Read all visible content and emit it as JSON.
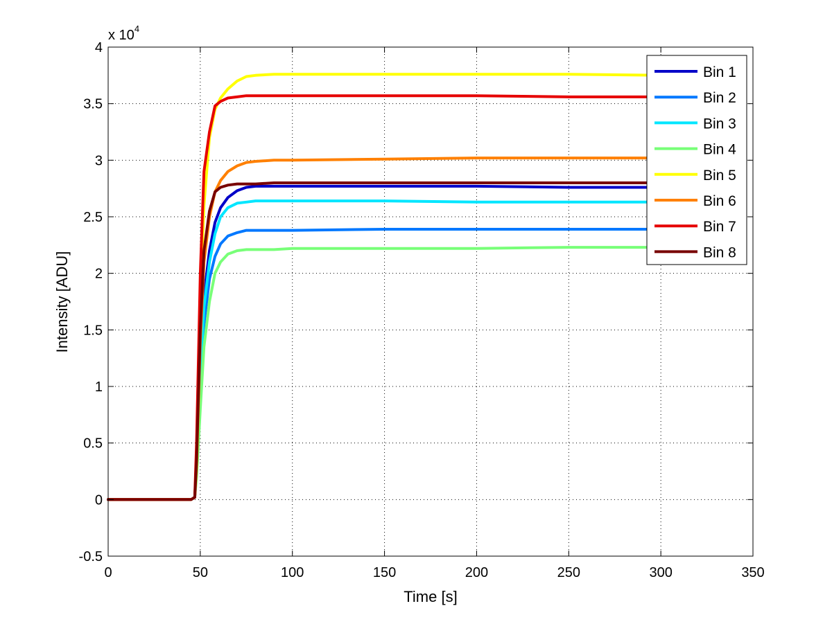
{
  "chart_data": {
    "type": "line",
    "title": "",
    "xlabel": "Time [s]",
    "ylabel": "Intensity [ADU]",
    "y_exponent_label": "x 10",
    "y_exponent_power": "4",
    "xlim": [
      0,
      350
    ],
    "ylim": [
      -0.5,
      4
    ],
    "x_ticks": [
      0,
      50,
      100,
      150,
      200,
      250,
      300,
      350
    ],
    "y_ticks": [
      -0.5,
      0,
      0.5,
      1,
      1.5,
      2,
      2.5,
      3,
      3.5,
      4
    ],
    "x_tick_labels": [
      "0",
      "50",
      "100",
      "150",
      "200",
      "250",
      "300",
      "350"
    ],
    "y_tick_labels": [
      "-0.5",
      "0",
      "0.5",
      "1",
      "1.5",
      "2",
      "2.5",
      "3",
      "3.5",
      "4"
    ],
    "y_units_note": "y values in units of 10^4 ADU",
    "grid": true,
    "legend_position": "top-right",
    "series": [
      {
        "name": "Bin 1",
        "color": "#0000c8",
        "x": [
          0,
          45,
          47,
          48,
          50,
          52,
          55,
          58,
          61,
          65,
          70,
          75,
          80,
          90,
          100,
          150,
          200,
          250,
          300
        ],
        "y": [
          0,
          0,
          0.02,
          0.3,
          1.2,
          1.8,
          2.2,
          2.45,
          2.58,
          2.67,
          2.73,
          2.76,
          2.77,
          2.77,
          2.77,
          2.77,
          2.77,
          2.76,
          2.76
        ]
      },
      {
        "name": "Bin 2",
        "color": "#0078ff",
        "x": [
          0,
          45,
          47,
          48,
          50,
          52,
          55,
          58,
          61,
          65,
          70,
          75,
          80,
          90,
          100,
          150,
          200,
          250,
          300
        ],
        "y": [
          0,
          0,
          0.02,
          0.25,
          1.0,
          1.55,
          1.95,
          2.15,
          2.26,
          2.33,
          2.36,
          2.38,
          2.38,
          2.38,
          2.38,
          2.39,
          2.39,
          2.39,
          2.39
        ]
      },
      {
        "name": "Bin 3",
        "color": "#00e6ff",
        "x": [
          0,
          45,
          47,
          48,
          50,
          52,
          55,
          58,
          61,
          65,
          70,
          75,
          80,
          90,
          100,
          150,
          200,
          250,
          300
        ],
        "y": [
          0,
          0,
          0.02,
          0.28,
          1.1,
          1.7,
          2.1,
          2.35,
          2.5,
          2.58,
          2.62,
          2.63,
          2.64,
          2.64,
          2.64,
          2.64,
          2.63,
          2.63,
          2.63
        ]
      },
      {
        "name": "Bin 4",
        "color": "#78ff78",
        "x": [
          0,
          45,
          47,
          48,
          50,
          52,
          55,
          58,
          61,
          65,
          70,
          75,
          80,
          90,
          100,
          150,
          200,
          250,
          300
        ],
        "y": [
          0,
          0,
          0.02,
          0.2,
          0.8,
          1.35,
          1.75,
          2.0,
          2.1,
          2.17,
          2.2,
          2.21,
          2.21,
          2.21,
          2.22,
          2.22,
          2.22,
          2.23,
          2.23
        ]
      },
      {
        "name": "Bin 5",
        "color": "#ffff00",
        "x": [
          0,
          45,
          47,
          48,
          50,
          52,
          55,
          58,
          61,
          65,
          70,
          75,
          80,
          90,
          100,
          150,
          200,
          250,
          300
        ],
        "y": [
          0,
          0,
          0.02,
          0.4,
          1.8,
          2.6,
          3.2,
          3.45,
          3.55,
          3.63,
          3.7,
          3.74,
          3.75,
          3.76,
          3.76,
          3.76,
          3.76,
          3.76,
          3.75
        ]
      },
      {
        "name": "Bin 6",
        "color": "#ff8000",
        "x": [
          0,
          45,
          47,
          48,
          50,
          52,
          55,
          58,
          61,
          65,
          70,
          75,
          80,
          90,
          100,
          150,
          200,
          250,
          300
        ],
        "y": [
          0,
          0,
          0.02,
          0.3,
          1.4,
          2.1,
          2.5,
          2.72,
          2.82,
          2.9,
          2.95,
          2.98,
          2.99,
          3.0,
          3.0,
          3.01,
          3.02,
          3.02,
          3.02
        ]
      },
      {
        "name": "Bin 7",
        "color": "#e60000",
        "x": [
          0,
          45,
          47,
          48,
          50,
          52,
          55,
          58,
          61,
          65,
          70,
          75,
          80,
          90,
          100,
          150,
          200,
          250,
          300
        ],
        "y": [
          0,
          0,
          0.02,
          0.5,
          2.0,
          2.9,
          3.25,
          3.48,
          3.52,
          3.55,
          3.56,
          3.57,
          3.57,
          3.57,
          3.57,
          3.57,
          3.57,
          3.56,
          3.56
        ]
      },
      {
        "name": "Bin 8",
        "color": "#780000",
        "x": [
          0,
          45,
          47,
          48,
          50,
          52,
          55,
          58,
          61,
          65,
          70,
          75,
          80,
          90,
          100,
          150,
          200,
          250,
          300
        ],
        "y": [
          0,
          0,
          0.02,
          0.35,
          1.5,
          2.2,
          2.55,
          2.72,
          2.76,
          2.78,
          2.79,
          2.79,
          2.79,
          2.8,
          2.8,
          2.8,
          2.8,
          2.8,
          2.8
        ]
      }
    ]
  }
}
